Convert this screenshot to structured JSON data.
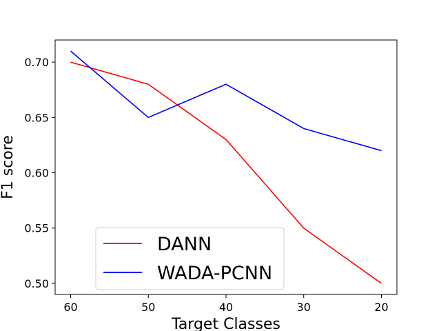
{
  "chart_data": {
    "type": "line",
    "xlabel": "Target Classes",
    "ylabel": "F1 score",
    "categories": [
      "60",
      "50",
      "40",
      "30",
      "20"
    ],
    "yticks": [
      "0.50",
      "0.55",
      "0.60",
      "0.65",
      "0.70"
    ],
    "ylim": [
      0.49,
      0.72
    ],
    "grid": false,
    "legend_position": "lower-left",
    "series": [
      {
        "name": "DANN",
        "color": "#ff0000",
        "values": [
          0.7,
          0.68,
          0.63,
          0.55,
          0.5
        ]
      },
      {
        "name": "WADA-PCNN",
        "color": "#0000ff",
        "values": [
          0.71,
          0.65,
          0.68,
          0.64,
          0.62
        ]
      }
    ]
  }
}
